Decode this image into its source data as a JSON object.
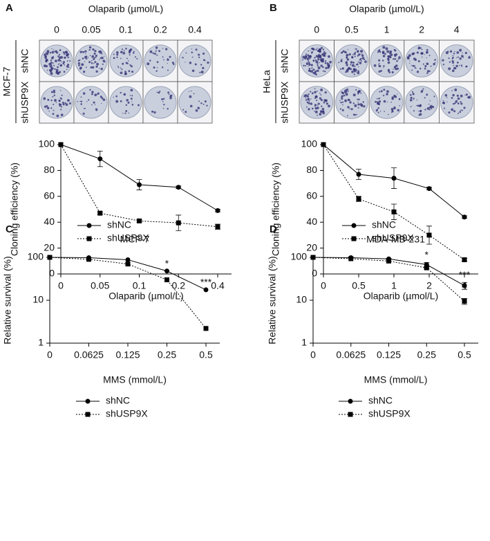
{
  "chart_data": [
    {
      "type": "line",
      "panel": "A",
      "cell_line": "MCF-7",
      "image_rows": [
        "shNC",
        "shUSP9X"
      ],
      "categories": [
        "0",
        "0.05",
        "0.1",
        "0.2",
        "0.4"
      ],
      "x_label": "Olaparib (µmol/L)",
      "y_label": "Cloning efficiency (%)",
      "ylim": [
        0,
        100
      ],
      "yticks": [
        0,
        20,
        40,
        60,
        80,
        100
      ],
      "legend": "lower left",
      "series": [
        {
          "name": "shNC",
          "color": "#000000",
          "marker": "circle",
          "dash": "solid",
          "values": [
            100,
            89,
            69,
            67,
            49
          ],
          "errors": [
            0,
            6,
            4,
            1,
            1
          ]
        },
        {
          "name": "shUSP9X",
          "color": "#000000",
          "marker": "square",
          "dash": "dotted",
          "values": [
            100,
            47,
            41,
            39.5,
            36.5
          ],
          "errors": [
            0,
            1,
            1,
            6,
            2
          ]
        }
      ]
    },
    {
      "type": "line",
      "panel": "B",
      "cell_line": "HeLa",
      "image_rows": [
        "shNC",
        "shUSP9X"
      ],
      "categories": [
        "0",
        "0.5",
        "1",
        "2",
        "4"
      ],
      "x_label": "Olaparib (µmol/L)",
      "y_label": "Cloning efficiency (%)",
      "ylim": [
        0,
        100
      ],
      "yticks": [
        0,
        20,
        40,
        60,
        80,
        100
      ],
      "legend": "lower left",
      "series": [
        {
          "name": "shNC",
          "color": "#000000",
          "marker": "circle",
          "dash": "solid",
          "values": [
            100,
            77,
            74,
            66,
            44
          ],
          "errors": [
            0,
            4,
            8,
            1,
            1
          ]
        },
        {
          "name": "shUSP9X",
          "color": "#000000",
          "marker": "square",
          "dash": "dotted",
          "values": [
            100,
            58,
            48,
            30,
            11
          ],
          "errors": [
            0,
            2,
            6,
            7,
            1
          ]
        }
      ]
    },
    {
      "type": "line",
      "panel": "C",
      "title": "MCF-7",
      "categories": [
        "0",
        "0.0625",
        "0.125",
        "0.25",
        "0.5"
      ],
      "x_label": "MMS (mmol/L)",
      "y_label": "Relative survival (%)",
      "log_y": true,
      "ylim": [
        1,
        100
      ],
      "yticks": [
        1,
        10,
        100
      ],
      "legend": "lower left",
      "annotations": [
        null,
        null,
        null,
        "*",
        "***"
      ],
      "series": [
        {
          "name": "shNC",
          "color": "#000000",
          "marker": "circle",
          "dash": "solid",
          "values": [
            100,
            98,
            88,
            48,
            17.5
          ]
        },
        {
          "name": "shUSP9X",
          "color": "#000000",
          "marker": "square",
          "dash": "dotted",
          "values": [
            100,
            90,
            70,
            30,
            2.2
          ]
        }
      ]
    },
    {
      "type": "line",
      "panel": "D",
      "title": "MDA-MB-231",
      "categories": [
        "0",
        "0.0625",
        "0.125",
        "0.25",
        "0.5"
      ],
      "x_label": "MMS (mmol/L)",
      "y_label": "Relative survival (%)",
      "log_y": true,
      "ylim": [
        1,
        100
      ],
      "yticks": [
        1,
        10,
        100
      ],
      "legend": "lower left",
      "annotations": [
        null,
        null,
        null,
        "*",
        "***"
      ],
      "series": [
        {
          "name": "shNC",
          "color": "#000000",
          "marker": "circle",
          "dash": "solid",
          "values": [
            100,
            98,
            92,
            68,
            22
          ],
          "errors": [
            0,
            3,
            3,
            8,
            4
          ]
        },
        {
          "name": "shUSP9X",
          "color": "#000000",
          "marker": "square",
          "dash": "dotted",
          "values": [
            100,
            93,
            82,
            57,
            9.5
          ],
          "errors": [
            0,
            0,
            0,
            3,
            1.5
          ]
        }
      ]
    }
  ]
}
